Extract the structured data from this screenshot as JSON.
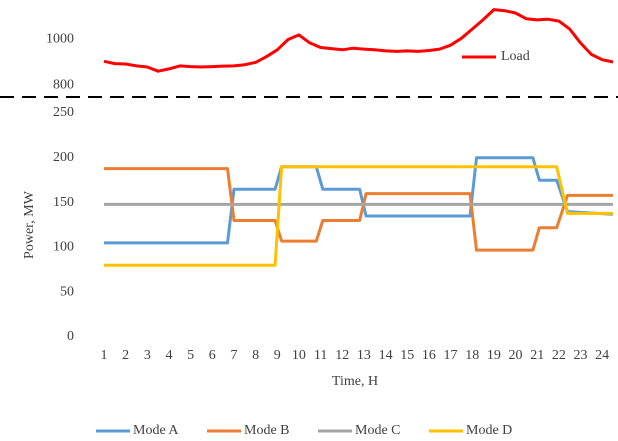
{
  "chart_data": [
    {
      "type": "line",
      "legend": "right",
      "x": [
        1,
        1.5,
        2,
        2.5,
        3,
        3.5,
        4,
        4.5,
        5,
        5.5,
        6,
        6.5,
        7,
        7.5,
        8,
        8.5,
        9,
        9.5,
        10,
        10.5,
        11,
        11.5,
        12,
        12.5,
        13,
        13.5,
        14,
        14.5,
        15,
        15.5,
        16,
        16.5,
        17,
        17.5,
        18,
        18.5,
        19,
        19.5,
        20,
        20.5,
        21,
        21.5,
        22,
        22.5,
        23,
        23.5,
        24,
        24.5
      ],
      "series": [
        {
          "name": "Load",
          "color": "#ff0000",
          "values": [
            905,
            895,
            893,
            885,
            880,
            862,
            872,
            885,
            882,
            880,
            882,
            884,
            885,
            890,
            900,
            925,
            955,
            1000,
            1020,
            985,
            965,
            960,
            955,
            962,
            958,
            955,
            950,
            948,
            950,
            948,
            952,
            958,
            975,
            1005,
            1045,
            1085,
            1130,
            1125,
            1115,
            1090,
            1085,
            1088,
            1080,
            1045,
            985,
            935,
            912,
            902
          ]
        }
      ],
      "xlim": [
        1,
        24.5
      ],
      "ylim": [
        780,
        1150
      ],
      "yticks": [
        800,
        1000
      ]
    },
    {
      "type": "line",
      "legend": "bottom",
      "x": [
        1,
        6.7,
        7,
        8.9,
        9.2,
        10.8,
        11.1,
        12.8,
        13.1,
        17.9,
        18.2,
        20.8,
        21.1,
        21.9,
        22.4,
        24.5
      ],
      "series": [
        {
          "name": "Mode A",
          "color": "#5b9bd5",
          "values": [
            105,
            105,
            165,
            165,
            190,
            190,
            165,
            165,
            135,
            135,
            200,
            200,
            175,
            175,
            140,
            137
          ]
        },
        {
          "name": "Mode B",
          "color": "#ed7d31",
          "values": [
            188,
            188,
            130,
            130,
            107,
            107,
            130,
            130,
            160,
            160,
            97,
            97,
            122,
            122,
            158,
            158
          ]
        },
        {
          "name": "Mode C",
          "color": "#a5a5a5",
          "values": [
            148,
            148,
            148,
            148,
            148,
            148,
            148,
            148,
            148,
            148,
            148,
            148,
            148,
            148,
            148,
            148
          ]
        },
        {
          "name": "Mode D",
          "color": "#ffc000",
          "values": [
            80,
            80,
            80,
            80,
            190,
            190,
            190,
            190,
            190,
            190,
            190,
            190,
            190,
            190,
            138,
            138
          ]
        }
      ],
      "xlabel": "Time, H",
      "ylabel": "Power, MW",
      "xlim": [
        1,
        24.5
      ],
      "xticks": [
        1,
        2,
        3,
        4,
        5,
        6,
        7,
        8,
        9,
        10,
        11,
        12,
        13,
        14,
        15,
        16,
        17,
        18,
        19,
        20,
        21,
        22,
        23,
        24
      ],
      "ylim": [
        0,
        250
      ],
      "yticks": [
        0,
        50,
        100,
        150,
        200,
        250
      ]
    }
  ]
}
